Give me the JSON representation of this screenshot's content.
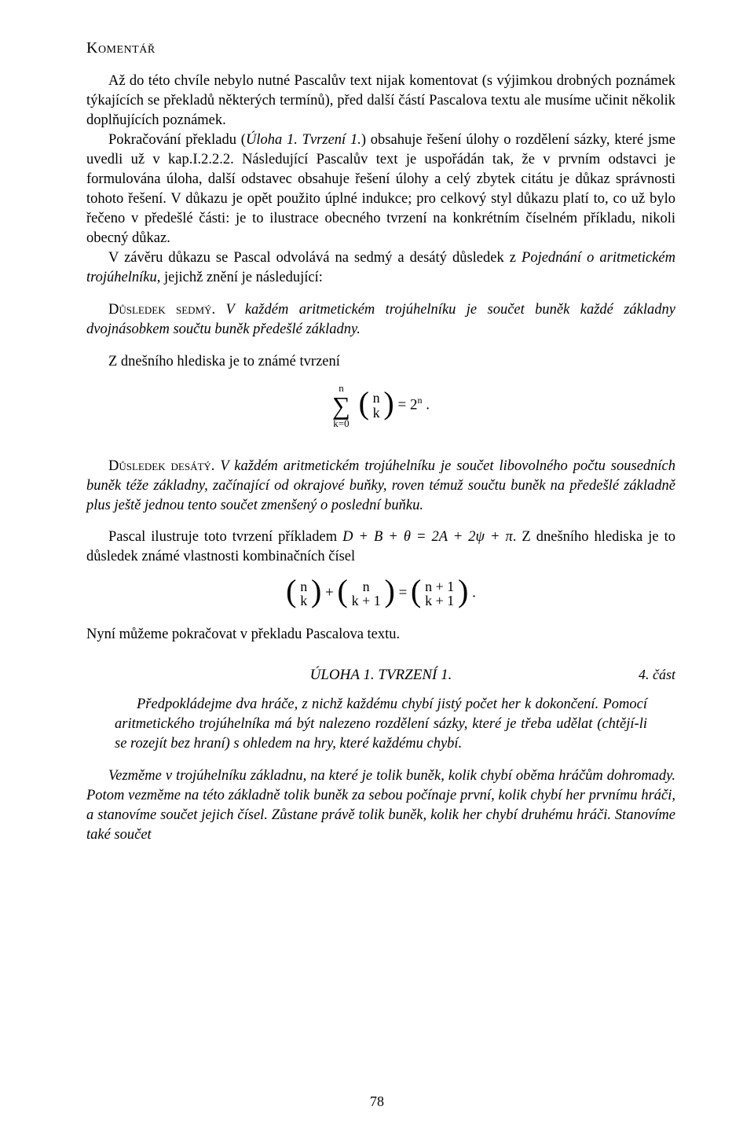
{
  "header": "Komentář",
  "p1": "Až do této chvíle nebylo nutné Pascalův text nijak komentovat (s výjimkou drobných poznámek týkajících se překladů některých termínů), před další částí Pascalova textu ale musíme učinit několik doplňujících poznámek.",
  "p2": "Pokračování překladu (Úloha 1. Tvrzení 1.) obsahuje řešení úlohy o rozdělení sázky, které jsme uvedli už v kap.I.2.2.2. Následující Pascalův text je uspořádán tak, že v prvním odstavci je formulována úloha, další odstavec obsahuje řešení úlohy a celý zbytek citátu je důkaz správnosti tohoto řešení. V důkazu je opět použito úplné indukce; pro celkový styl důkazu platí to, co už bylo řečeno v předešlé části: je to ilustrace obecného tvrzení na konkrétním číselném příkladu, nikoli obecný důkaz.",
  "p3": "V závěru důkazu se Pascal odvolává na sedmý a desátý důsledek z Pojednání o aritmetickém trojúhelníku, jejichž znění je následující:",
  "d7_label": "Důsledek sedmý.",
  "d7_text": "V každém aritmetickém trojúhelníku je součet buněk každé základny dvojnásobkem součtu buněk předešlé základny.",
  "p4": "Z dnešního hlediska je to známé tvrzení",
  "formula1": {
    "sum_top": "n",
    "sum_bot": "k=0",
    "binom_top": "n",
    "binom_bot": "k",
    "rhs": "= 2",
    "exp": "n",
    "trail": " ."
  },
  "d10_label": "Důsledek desátý.",
  "d10_text": "V každém aritmetickém trojúhelníku je součet libovolného počtu sousedních buněk téže základny, začínající od okrajové buňky, roven témuž součtu buněk na předešlé základně plus ještě jednou tento součet zmenšený o poslední buňku.",
  "p5a": "Pascal ilustruje toto tvrzení příkladem ",
  "p5eq": "D + B + θ = 2A + 2ψ + π",
  "p5b": ". Z dnešního hlediska je to důsledek známé vlastnosti kombinačních čísel",
  "formula2": {
    "b1_top": "n",
    "b1_bot": "k",
    "plus": " + ",
    "b2_top": "n",
    "b2_bot": "k + 1",
    "eq": " = ",
    "b3_top": "n + 1",
    "b3_bot": "k + 1",
    "trail": " ."
  },
  "p6": "Nyní můžeme pokračovat v překladu Pascalova textu.",
  "title": "ÚLOHA 1. TVRZENÍ 1.",
  "title_right": "4. část",
  "q1": "Předpokládejme dva hráče, z nichž každému chybí jistý počet her k dokončení. Pomocí aritmetického trojúhelníka má být nalezeno rozdělení sázky, které je třeba udělat (chtějí-li se rozejít bez hraní) s ohledem na hry, které každému chybí.",
  "q2": "Vezměme v trojúhelníku základnu, na které je tolik buněk, kolik chybí oběma hráčům dohromady. Potom vezměme na této základně tolik buněk za sebou počínaje první, kolik chybí her prvnímu hráči, a stanovíme součet jejich čísel. Zůstane právě tolik buněk, kolik her chybí druhému hráči. Stanovíme také součet",
  "page_number": "78"
}
